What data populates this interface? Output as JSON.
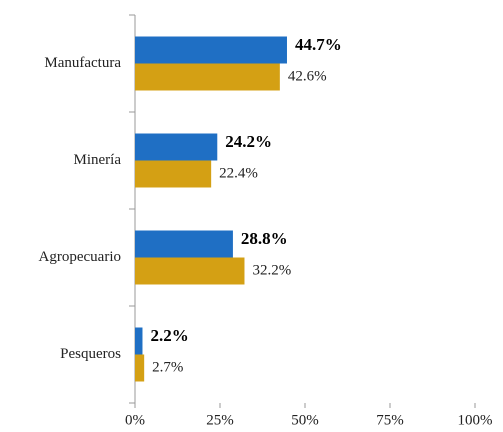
{
  "chart_data": {
    "type": "bar",
    "orientation": "horizontal",
    "categories": [
      "Manufactura",
      "Minería",
      "Agropecuario",
      "Pesqueros"
    ],
    "series": [
      {
        "color": "#1f6fc4",
        "values": [
          44.7,
          24.2,
          28.8,
          2.2
        ],
        "value_labels": [
          "44.7%",
          "24.2%",
          "28.8%",
          "2.2%"
        ],
        "bold_labels": true
      },
      {
        "color": "#d4a014",
        "values": [
          42.6,
          22.4,
          32.2,
          2.7
        ],
        "value_labels": [
          "42.6%",
          "22.4%",
          "32.2%",
          "2.7%"
        ],
        "bold_labels": false
      }
    ],
    "xlim": [
      0,
      100
    ],
    "xticks": [
      {
        "value": 0,
        "label": "0%"
      },
      {
        "value": 25,
        "label": "25%"
      },
      {
        "value": 50,
        "label": "50%"
      },
      {
        "value": 75,
        "label": "75%"
      },
      {
        "value": 100,
        "label": "100%"
      }
    ],
    "grid": false
  }
}
